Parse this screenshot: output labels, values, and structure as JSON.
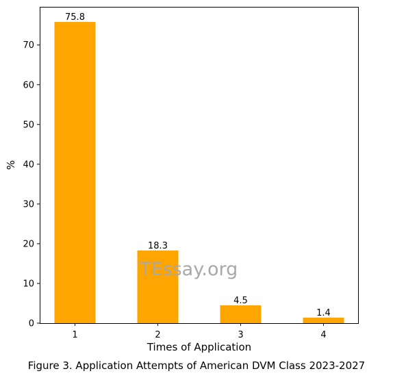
{
  "chart_data": {
    "type": "bar",
    "categories": [
      "1",
      "2",
      "3",
      "4"
    ],
    "values": [
      75.8,
      18.3,
      4.5,
      1.4
    ],
    "data_labels": [
      "75.8",
      "18.3",
      "4.5",
      "1.4"
    ],
    "xlabel": "Times of Application",
    "ylabel": "%",
    "ylim": [
      0,
      79.6
    ],
    "yticks": [
      0,
      10,
      20,
      30,
      40,
      50,
      60,
      70
    ],
    "ytick_labels": [
      "0",
      "10",
      "20",
      "30",
      "40",
      "50",
      "60",
      "70"
    ],
    "grid": false,
    "bar_color": "#ffa500",
    "watermark": "TEssay.org"
  },
  "caption": "Figure 3. Application Attempts of American DVM Class 2023-2027"
}
